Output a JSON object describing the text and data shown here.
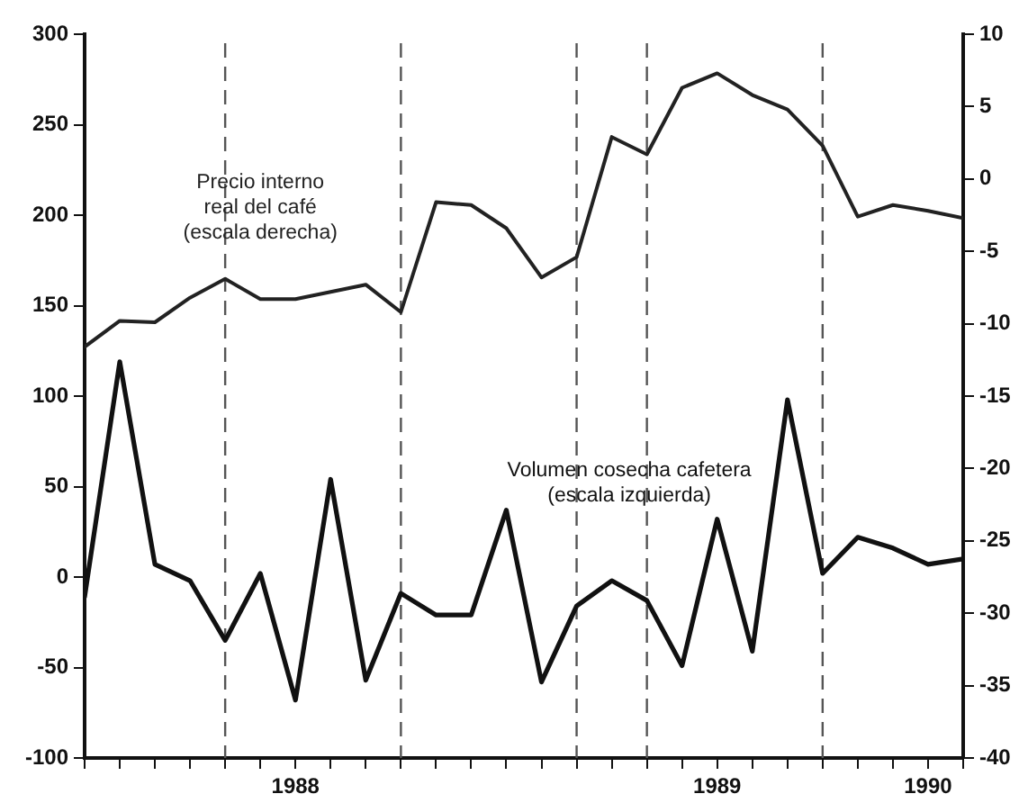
{
  "chart_data": {
    "type": "line",
    "x": [
      "1988-01",
      "1988-02",
      "1988-03",
      "1988-04",
      "1988-05",
      "1988-06",
      "1988-07",
      "1988-08",
      "1988-09",
      "1988-10",
      "1988-11",
      "1988-12",
      "1989-01",
      "1989-02",
      "1989-03",
      "1989-04",
      "1989-05",
      "1989-06",
      "1989-07",
      "1989-08",
      "1989-09",
      "1989-10",
      "1989-11",
      "1989-12",
      "1990-01",
      "1990-02"
    ],
    "series": [
      {
        "name": "Precio interno\nreal del café\n(escala derecha)",
        "color": "#222222",
        "axis": "y2",
        "values": [
          -11.6,
          -9.8,
          -9.9,
          -8.2,
          -6.9,
          -8.3,
          -8.3,
          -7.8,
          -7.3,
          -9.2,
          -1.6,
          -1.8,
          -3.4,
          -6.8,
          -5.4,
          2.9,
          1.7,
          6.3,
          7.3,
          5.8,
          4.8,
          2.3,
          -2.6,
          -1.8,
          -2.2,
          -2.7
        ]
      },
      {
        "name": "Volumen cosecha cafetera\n(escala izquierda)",
        "color": "#111111",
        "values": [
          -11,
          119,
          7,
          -2,
          -35,
          2,
          -68,
          54,
          -57,
          -9,
          -21,
          -21,
          37,
          -58,
          -16,
          -2,
          -13,
          -49,
          32,
          -41,
          98,
          2,
          22,
          16,
          7,
          10
        ]
      }
    ],
    "xlim": [
      "1988-01",
      "1990-02"
    ],
    "xticks": [
      {
        "value": "1988-01",
        "label": null
      },
      {
        "value": "1988-02",
        "label": null
      },
      {
        "value": "1988-03",
        "label": null
      },
      {
        "value": "1988-04",
        "label": null
      },
      {
        "value": "1988-05",
        "label": null
      },
      {
        "value": "1988-06",
        "label": null
      },
      {
        "value": "1988-07",
        "label": "1988"
      },
      {
        "value": "1988-08",
        "label": null
      },
      {
        "value": "1988-09",
        "label": null
      },
      {
        "value": "1988-10",
        "label": null
      },
      {
        "value": "1988-11",
        "label": null
      },
      {
        "value": "1988-12",
        "label": null
      },
      {
        "value": "1989-01",
        "label": null
      },
      {
        "value": "1989-02",
        "label": null
      },
      {
        "value": "1989-03",
        "label": null
      },
      {
        "value": "1989-04",
        "label": null
      },
      {
        "value": "1989-05",
        "label": null
      },
      {
        "value": "1989-06",
        "label": null
      },
      {
        "value": "1989-07",
        "label": "1989"
      },
      {
        "value": "1989-08",
        "label": null
      },
      {
        "value": "1989-09",
        "label": null
      },
      {
        "value": "1989-10",
        "label": null
      },
      {
        "value": "1989-11",
        "label": null
      },
      {
        "value": "1989-12",
        "label": null
      },
      {
        "value": "1990-01",
        "label": "1990"
      },
      {
        "value": "1990-02",
        "label": null
      }
    ],
    "ylim": [
      -100,
      300
    ],
    "yticks": [
      -100,
      -50,
      0,
      50,
      100,
      150,
      200,
      250,
      300
    ],
    "y2lim": [
      -40,
      10
    ],
    "y2ticks": [
      -40,
      -35,
      -30,
      -25,
      -20,
      -15,
      -10,
      -5,
      0,
      5,
      10
    ],
    "ref_lines": [
      {
        "axis": "x",
        "value": "1988-05",
        "line_style": "dashed",
        "color": "#555555"
      },
      {
        "axis": "x",
        "value": "1988-10",
        "line_style": "dashed",
        "color": "#555555"
      },
      {
        "axis": "x",
        "value": "1989-03",
        "line_style": "dashed",
        "color": "#555555"
      },
      {
        "axis": "x",
        "value": "1989-05",
        "line_style": "dashed",
        "color": "#555555"
      },
      {
        "axis": "x",
        "value": "1989-10",
        "line_style": "dashed",
        "color": "#555555"
      }
    ],
    "grid": false,
    "legend": false,
    "marker": "none",
    "line_style": "solid"
  }
}
